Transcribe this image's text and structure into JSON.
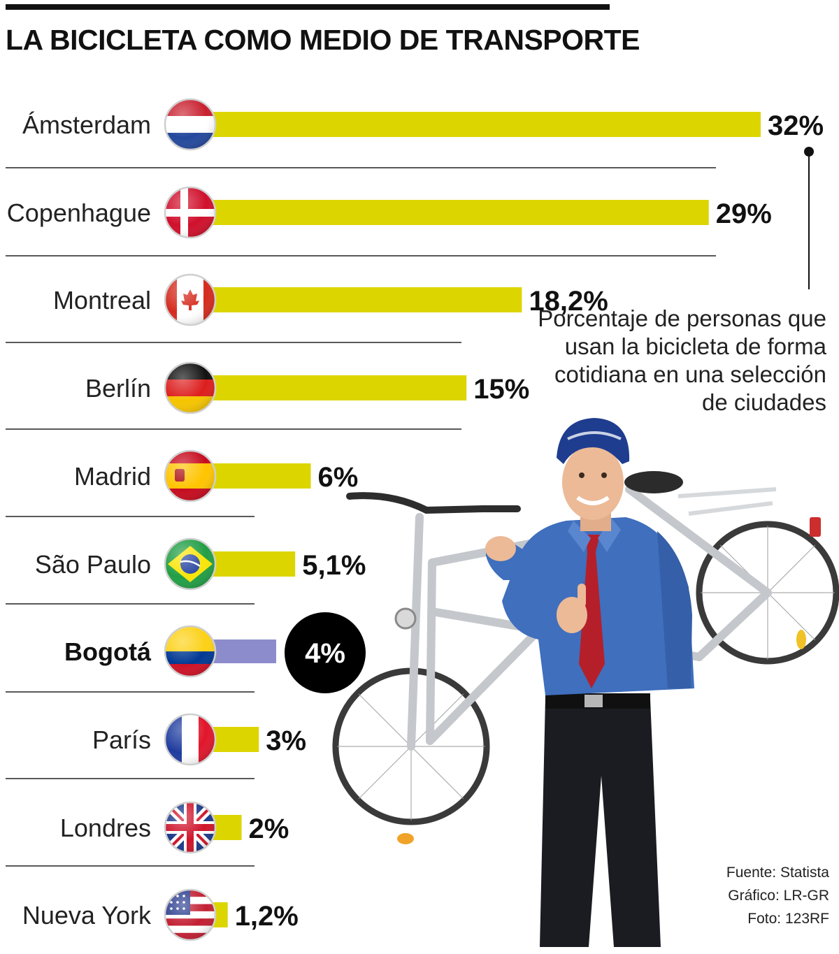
{
  "title": "LA BICICLETA COMO MEDIO DE TRANSPORTE",
  "annotation": "Porcentaje de personas que usan la bicicleta de forma cotidiana en una selección de ciudades",
  "credits": {
    "source": "Fuente: Statista",
    "graphic": "Gráfico: LR-GR",
    "photo": "Foto: 123RF"
  },
  "colors": {
    "bar": "#ddd500",
    "highlight_bar": "#8c8ccc",
    "highlight_circle": "#000000",
    "text": "#111111"
  },
  "chart_data": {
    "type": "bar",
    "orientation": "horizontal",
    "title": "LA BICICLETA COMO MEDIO DE TRANSPORTE",
    "xlabel": "",
    "ylabel": "",
    "unit": "%",
    "xlim": [
      0,
      32
    ],
    "categories": [
      "Ámsterdam",
      "Copenhague",
      "Montreal",
      "Berlín",
      "Madrid",
      "São Paulo",
      "Bogotá",
      "París",
      "Londres",
      "Nueva York"
    ],
    "values": [
      32,
      29,
      18.2,
      15,
      6,
      5.1,
      4,
      3,
      2,
      1.2
    ],
    "value_labels": [
      "32%",
      "29%",
      "18,2%",
      "15%",
      "6%",
      "5,1%",
      "4%",
      "3%",
      "2%",
      "1,2%"
    ],
    "flags": [
      "netherlands-flag",
      "denmark-flag",
      "canada-flag",
      "germany-flag",
      "spain-flag",
      "brazil-flag",
      "colombia-flag",
      "france-flag",
      "uk-flag",
      "usa-flag"
    ],
    "highlight": "Bogotá"
  }
}
